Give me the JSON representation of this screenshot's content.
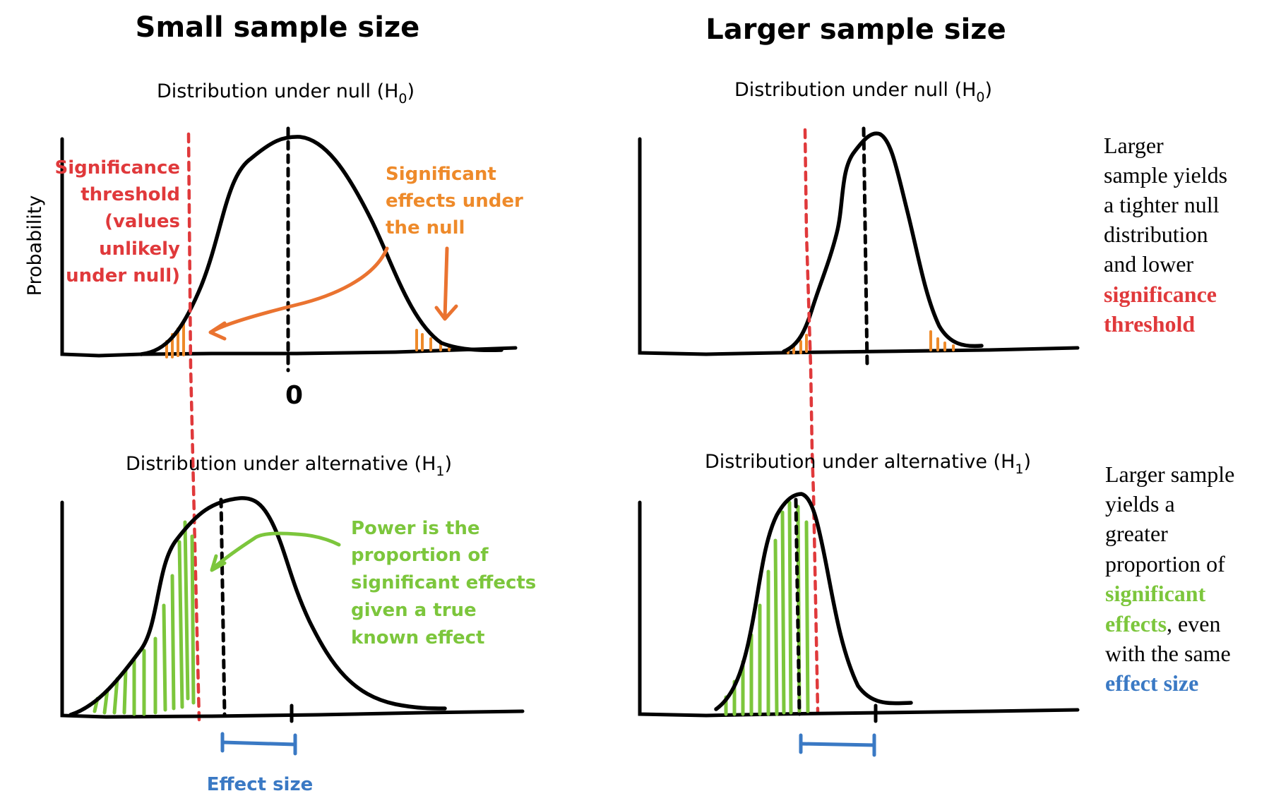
{
  "left_panel": {
    "title": "Small sample size",
    "null_label": "Distribution under null (H",
    "null_sub": "0",
    "alt_label": "Distribution under alternative (H",
    "alt_sub": "1",
    "close_paren": ")",
    "y_axis_label": "Probability",
    "zero_label": "0",
    "significance_note": [
      "Significance",
      "threshold",
      "(values",
      "unlikely",
      "under null)"
    ],
    "significant_effects_note": [
      "Significant",
      "effects under",
      "the null"
    ],
    "power_note": [
      "Power is the",
      "proportion of",
      "significant effects",
      "given a true",
      "known effect"
    ],
    "effect_size_label": "Effect size"
  },
  "right_panel": {
    "title": "Larger sample size",
    "null_label": "Distribution under null (H",
    "null_sub": "0",
    "alt_label": "Distribution under alternative (H",
    "alt_sub": "1",
    "close_paren": ")",
    "note_top": {
      "lines": [
        "Larger",
        "sample yields",
        "a tighter null",
        "distribution",
        "and lower"
      ],
      "highlight": [
        "significance",
        "threshold"
      ]
    },
    "note_bottom": {
      "lines": [
        "Larger sample",
        "yields a",
        "greater",
        "proportion of"
      ],
      "highlight_green": [
        "significant",
        "effects"
      ],
      "after_green": ", even",
      "line_after": "with the same",
      "highlight_blue": "effect size"
    }
  },
  "colors": {
    "threshold_red": "#e0393b",
    "orange": "#ea7330",
    "orange_text": "#ee8a2a",
    "green": "#7cc63c",
    "blue": "#3a79c4"
  }
}
